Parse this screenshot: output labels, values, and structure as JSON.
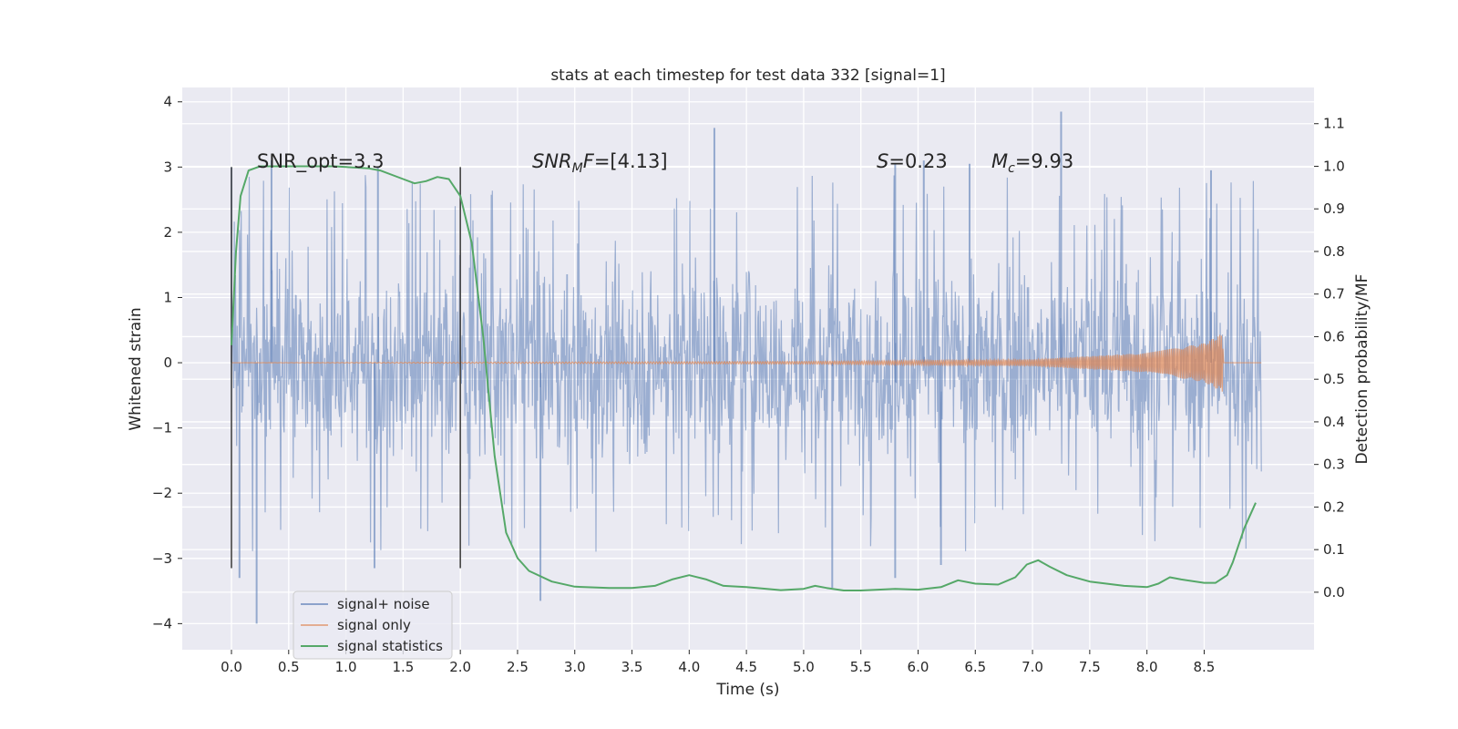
{
  "chart_data": {
    "type": "line",
    "title": "stats at each timestep for test data 332 [signal=1]",
    "xlabel": "Time (s)",
    "ylabel_left": "Whitened strain",
    "ylabel_right": "Detection probability/MF",
    "xlim": [
      -0.43,
      9.46
    ],
    "ylim_left": [
      -4.4,
      4.22
    ],
    "ylim_right": [
      -0.135,
      1.185
    ],
    "x_ticks": [
      0.0,
      0.5,
      1.0,
      1.5,
      2.0,
      2.5,
      3.0,
      3.5,
      4.0,
      4.5,
      5.0,
      5.5,
      6.0,
      6.5,
      7.0,
      7.5,
      8.0,
      8.5
    ],
    "x_tick_labels": [
      "0.0",
      "0.5",
      "1.0",
      "1.5",
      "2.0",
      "2.5",
      "3.0",
      "3.5",
      "4.0",
      "4.5",
      "5.0",
      "5.5",
      "6.0",
      "6.5",
      "7.0",
      "7.5",
      "8.0",
      "8.5"
    ],
    "y_left_ticks": [
      -4,
      -3,
      -2,
      -1,
      0,
      1,
      2,
      3,
      4
    ],
    "y_left_tick_labels": [
      "−4",
      "−3",
      "−2",
      "−1",
      "0",
      "1",
      "2",
      "3",
      "4"
    ],
    "y_right_ticks": [
      0.0,
      0.1,
      0.2,
      0.3,
      0.4,
      0.5,
      0.6,
      0.7,
      0.8,
      0.9,
      1.0,
      1.1
    ],
    "y_right_tick_labels": [
      "0.0",
      "0.1",
      "0.2",
      "0.3",
      "0.4",
      "0.5",
      "0.6",
      "0.7",
      "0.8",
      "0.9",
      "1.0",
      "1.1"
    ],
    "grid": true,
    "legend_position": "lower-left",
    "annotations": {
      "snr_opt": "SNR_opt=3.3",
      "snr_mf_sym": "SNR",
      "snr_mf_sub": "M",
      "snr_mf_tail": "F",
      "snr_mf_value": "=[4.13]",
      "s_sym": "S",
      "s_value": "=0.23",
      "mc_sym": "M",
      "mc_sub": "c",
      "mc_value": "=9.93"
    },
    "vertical_markers": [
      0.0,
      2.0
    ],
    "series": [
      {
        "name": "signal+ noise",
        "color": "#4c72b0",
        "t_range": [
          0.0,
          9.0
        ],
        "envelope_typical_abs": 1.2,
        "min_value": -4.0,
        "max_value": 3.85,
        "notable_peaks": [
          [
            0.0,
            3.0
          ],
          [
            0.35,
            3.1
          ],
          [
            1.28,
            3.0
          ],
          [
            4.22,
            3.6
          ],
          [
            5.8,
            3.05
          ],
          [
            6.05,
            3.1
          ],
          [
            6.45,
            3.05
          ],
          [
            7.25,
            3.85
          ],
          [
            8.56,
            2.95
          ]
        ],
        "notable_troughs": [
          [
            0.07,
            -3.3
          ],
          [
            0.22,
            -4.0
          ],
          [
            1.25,
            -3.15
          ],
          [
            2.7,
            -3.65
          ],
          [
            5.25,
            -3.45
          ],
          [
            5.8,
            -3.3
          ],
          [
            6.2,
            -3.1
          ]
        ]
      },
      {
        "name": "signal only",
        "color": "#dd8452",
        "description_points": [
          [
            0.0,
            0.0
          ],
          [
            5.0,
            0.02
          ],
          [
            7.0,
            0.05
          ],
          [
            8.0,
            0.15
          ],
          [
            8.5,
            0.3
          ],
          [
            8.66,
            0.45
          ],
          [
            8.67,
            0.0
          ]
        ]
      },
      {
        "name": "signal statistics",
        "color": "#55a868",
        "axis": "right",
        "x": [
          0.0,
          0.04,
          0.08,
          0.15,
          0.25,
          0.4,
          0.6,
          0.9,
          1.2,
          1.3,
          1.5,
          1.6,
          1.7,
          1.8,
          1.9,
          2.0,
          2.1,
          2.2,
          2.3,
          2.4,
          2.5,
          2.6,
          2.8,
          3.0,
          3.3,
          3.5,
          3.7,
          3.85,
          4.0,
          4.15,
          4.3,
          4.5,
          4.8,
          5.0,
          5.1,
          5.2,
          5.35,
          5.5,
          5.8,
          6.0,
          6.2,
          6.35,
          6.5,
          6.7,
          6.85,
          6.95,
          7.05,
          7.15,
          7.3,
          7.5,
          7.8,
          8.0,
          8.1,
          8.2,
          8.3,
          8.5,
          8.6,
          8.7,
          8.75,
          8.85,
          8.95
        ],
        "y": [
          0.58,
          0.8,
          0.93,
          0.99,
          1.0,
          1.0,
          1.0,
          1.0,
          0.995,
          0.99,
          0.97,
          0.96,
          0.965,
          0.975,
          0.97,
          0.93,
          0.82,
          0.6,
          0.32,
          0.14,
          0.08,
          0.05,
          0.025,
          0.013,
          0.01,
          0.01,
          0.015,
          0.03,
          0.04,
          0.03,
          0.015,
          0.012,
          0.005,
          0.008,
          0.015,
          0.01,
          0.004,
          0.004,
          0.008,
          0.006,
          0.012,
          0.028,
          0.02,
          0.018,
          0.035,
          0.065,
          0.075,
          0.06,
          0.04,
          0.025,
          0.015,
          0.012,
          0.02,
          0.035,
          0.03,
          0.022,
          0.022,
          0.04,
          0.07,
          0.15,
          0.21
        ]
      }
    ]
  }
}
